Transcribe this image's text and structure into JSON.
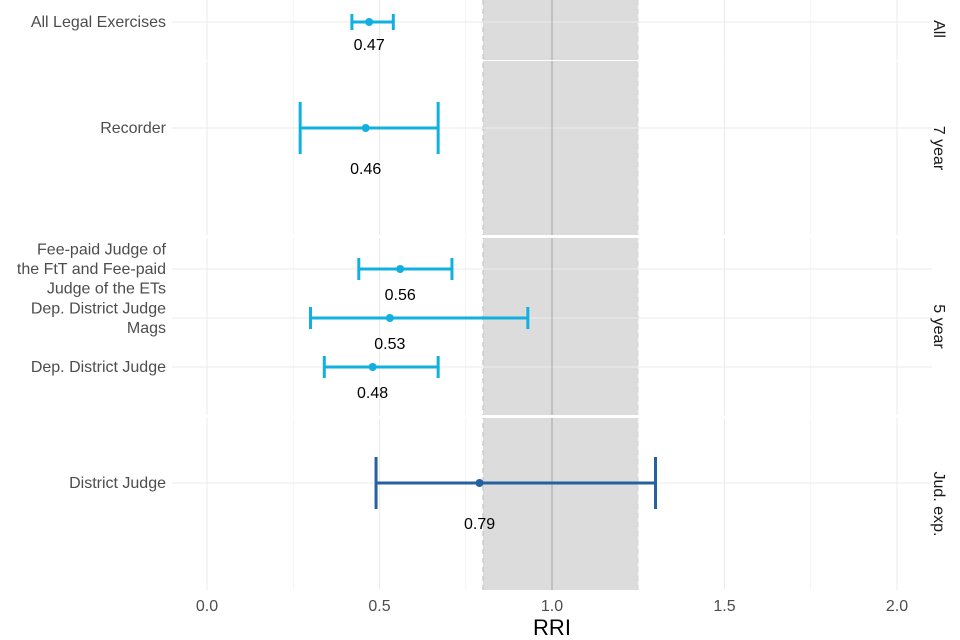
{
  "chart_data": {
    "type": "forest",
    "xlabel": "RRI",
    "xlim": [
      -0.2,
      2.1
    ],
    "xticks": [
      0.0,
      0.5,
      1.0,
      1.5,
      2.0
    ],
    "xtick_labels": [
      "0.0",
      "0.5",
      "1.0",
      "1.5",
      "2.0"
    ],
    "reference_line": 1.0,
    "reference_band": [
      0.8,
      1.25
    ],
    "colors": {
      "light": "#11b0e0",
      "dark": "#2560a0",
      "band": "#dcdcdc",
      "grid": "#ebebeb",
      "refline": "#a6a6a6"
    },
    "panels": [
      {
        "label": "All",
        "rows": [
          {
            "label": [
              "All Legal Exercises"
            ],
            "estimate": 0.47,
            "lower": 0.42,
            "upper": 0.54,
            "value_label": "0.47",
            "color": "light"
          }
        ]
      },
      {
        "label": "7 year",
        "rows": [
          {
            "label": [
              "Recorder"
            ],
            "estimate": 0.46,
            "lower": 0.27,
            "upper": 0.67,
            "value_label": "0.46",
            "color": "light"
          }
        ]
      },
      {
        "label": "5 year",
        "rows": [
          {
            "label": [
              "Fee-paid Judge of",
              "the FtT and Fee-paid",
              "Judge of the ETs"
            ],
            "estimate": 0.56,
            "lower": 0.44,
            "upper": 0.71,
            "value_label": "0.56",
            "color": "light"
          },
          {
            "label": [
              "Dep. District Judge",
              "Mags"
            ],
            "estimate": 0.53,
            "lower": 0.3,
            "upper": 0.93,
            "value_label": "0.53",
            "color": "light"
          },
          {
            "label": [
              "Dep. District Judge"
            ],
            "estimate": 0.48,
            "lower": 0.34,
            "upper": 0.67,
            "value_label": "0.48",
            "color": "light"
          }
        ]
      },
      {
        "label": "Jud. exp.",
        "rows": [
          {
            "label": [
              "District Judge"
            ],
            "estimate": 0.79,
            "lower": 0.49,
            "upper": 1.3,
            "value_label": "0.79",
            "color": "dark"
          }
        ]
      }
    ]
  }
}
